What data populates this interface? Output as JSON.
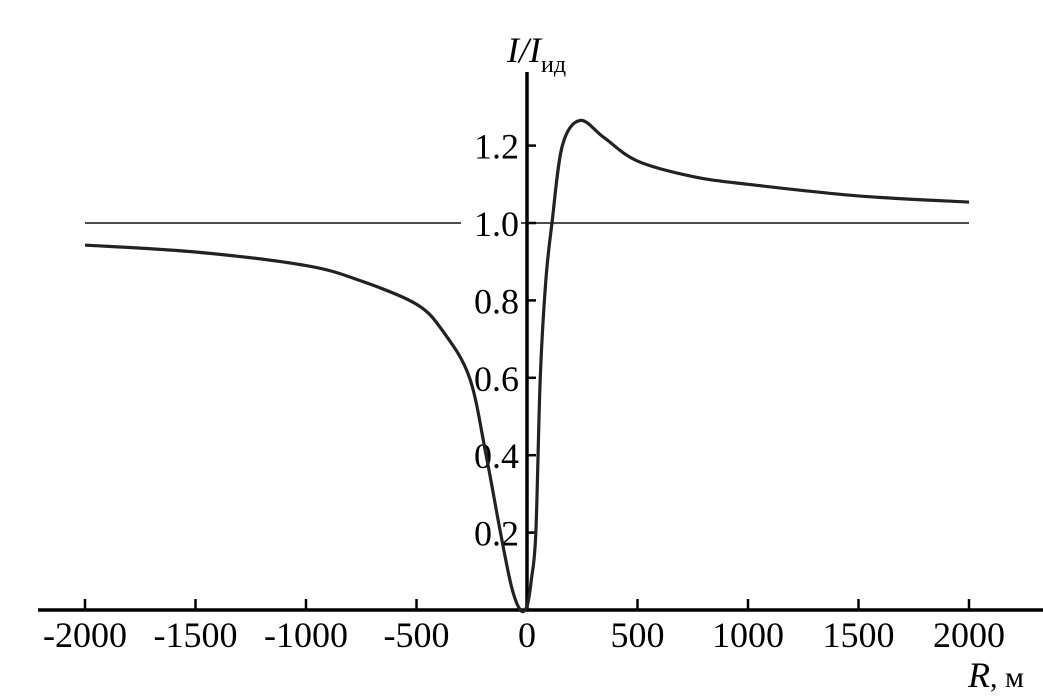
{
  "chart_data": {
    "type": "line",
    "title": "",
    "xlabel": "R, м",
    "xlabel_parts": {
      "var": "R",
      "unit": ", м"
    },
    "ylabel": "I/Iид",
    "ylabel_parts": {
      "var": "I/I",
      "sub": "ид"
    },
    "xlim": [
      -2000,
      2000
    ],
    "ylim": [
      0,
      1.35
    ],
    "x_ticks": [
      -2000,
      -1500,
      -1000,
      -500,
      0,
      500,
      1000,
      1500,
      2000
    ],
    "x_tick_labels": [
      "-2000",
      "-1500",
      "-1000",
      "-500",
      "0",
      "500",
      "1000",
      "1500",
      "2000"
    ],
    "y_ticks": [
      0.2,
      0.4,
      0.6,
      0.8,
      1.0,
      1.2
    ],
    "y_tick_labels": [
      "0.2",
      "0.4",
      "0.6",
      "0.8",
      "1.0",
      "1.2"
    ],
    "reference_line": {
      "y": 1.0
    },
    "grid": false,
    "line_color": "#222222",
    "series": [
      {
        "x": [
          -2000,
          -1500,
          -1000,
          -750,
          -500,
          -380,
          -260,
          -185,
          -120,
          -70,
          -30,
          0,
          20,
          40,
          60,
          85,
          113,
          160,
          240,
          350,
          500,
          750,
          1000,
          1500,
          2000
        ],
        "y": [
          0.943,
          0.925,
          0.89,
          0.85,
          0.79,
          0.72,
          0.6,
          0.4,
          0.2,
          0.06,
          0.0,
          0.01,
          0.08,
          0.2,
          0.6,
          0.85,
          1.0,
          1.2,
          1.265,
          1.22,
          1.16,
          1.12,
          1.1,
          1.07,
          1.054
        ]
      }
    ]
  }
}
